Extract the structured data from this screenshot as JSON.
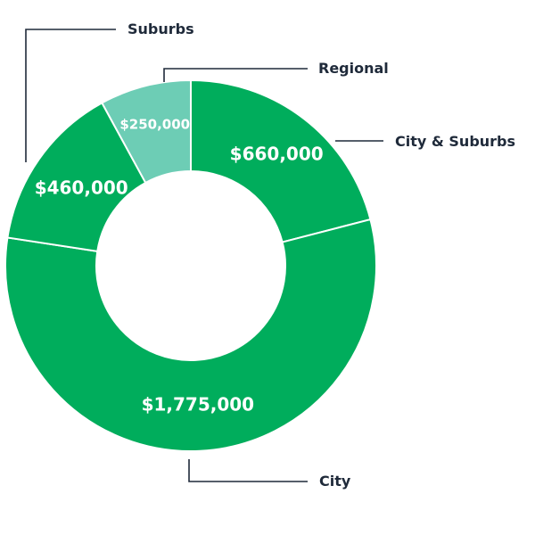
{
  "chart_data": {
    "type": "pie",
    "title": "",
    "slices": [
      {
        "name": "City & Suburbs",
        "value": 660000,
        "label": "$660,000",
        "color": "#00ad5c"
      },
      {
        "name": "City",
        "value": 1775000,
        "label": "$1,775,000",
        "color": "#00ad5c"
      },
      {
        "name": "Suburbs",
        "value": 460000,
        "label": "$460,000",
        "color": "#00ad5c"
      },
      {
        "name": "Regional",
        "value": 250000,
        "label": "$250,000",
        "color": "#6dcdb5"
      }
    ]
  }
}
